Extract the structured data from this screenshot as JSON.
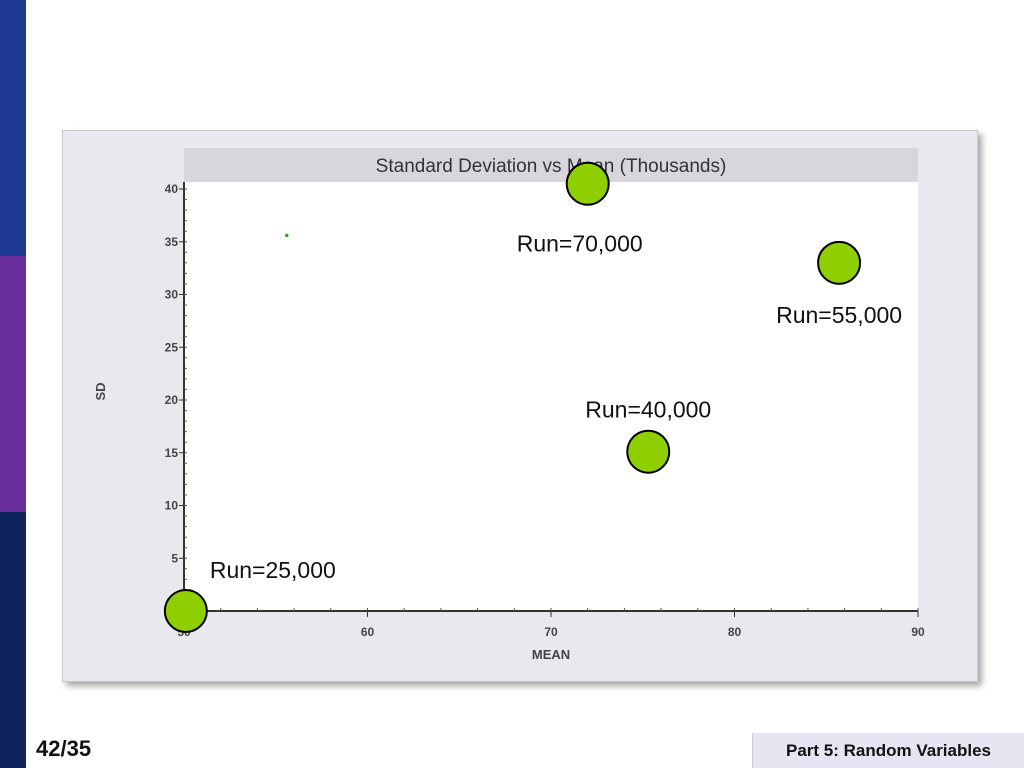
{
  "slide": {
    "page_number": "42/35",
    "footer": "Part 5: Random Variables"
  },
  "colors": {
    "side_top": "#1f3a93",
    "side_mid": "#6a2d9c",
    "side_bottom": "#0f245c",
    "marker_fill": "#8fce00",
    "marker_stroke": "#000000",
    "title_band": "#d9d5dc"
  },
  "chart_data": {
    "type": "scatter",
    "title": "Standard Deviation vs Mean (Thousands)",
    "xlabel": "MEAN",
    "ylabel": "SD",
    "xlim": [
      50,
      90
    ],
    "ylim": [
      0,
      40
    ],
    "x_ticks": [
      50,
      60,
      70,
      80,
      90
    ],
    "y_ticks": [
      5,
      10,
      15,
      20,
      25,
      30,
      35,
      40
    ],
    "x_tick_labels": [
      "50",
      "60",
      "70",
      "80",
      "90"
    ],
    "y_tick_labels": [
      "5",
      "10",
      "15",
      "20",
      "25",
      "30",
      "35",
      "40"
    ],
    "small_marker": {
      "x": 55.6,
      "y": 35.6
    },
    "points": [
      {
        "label": "Run=25,000",
        "x": 50.1,
        "y": 0
      },
      {
        "label": "Run=40,000",
        "x": 75.3,
        "y": 15.1
      },
      {
        "label": "Run=55,000",
        "x": 85.7,
        "y": 33
      },
      {
        "label": "Run=70,000",
        "x": 72,
        "y": 40.5
      }
    ]
  }
}
